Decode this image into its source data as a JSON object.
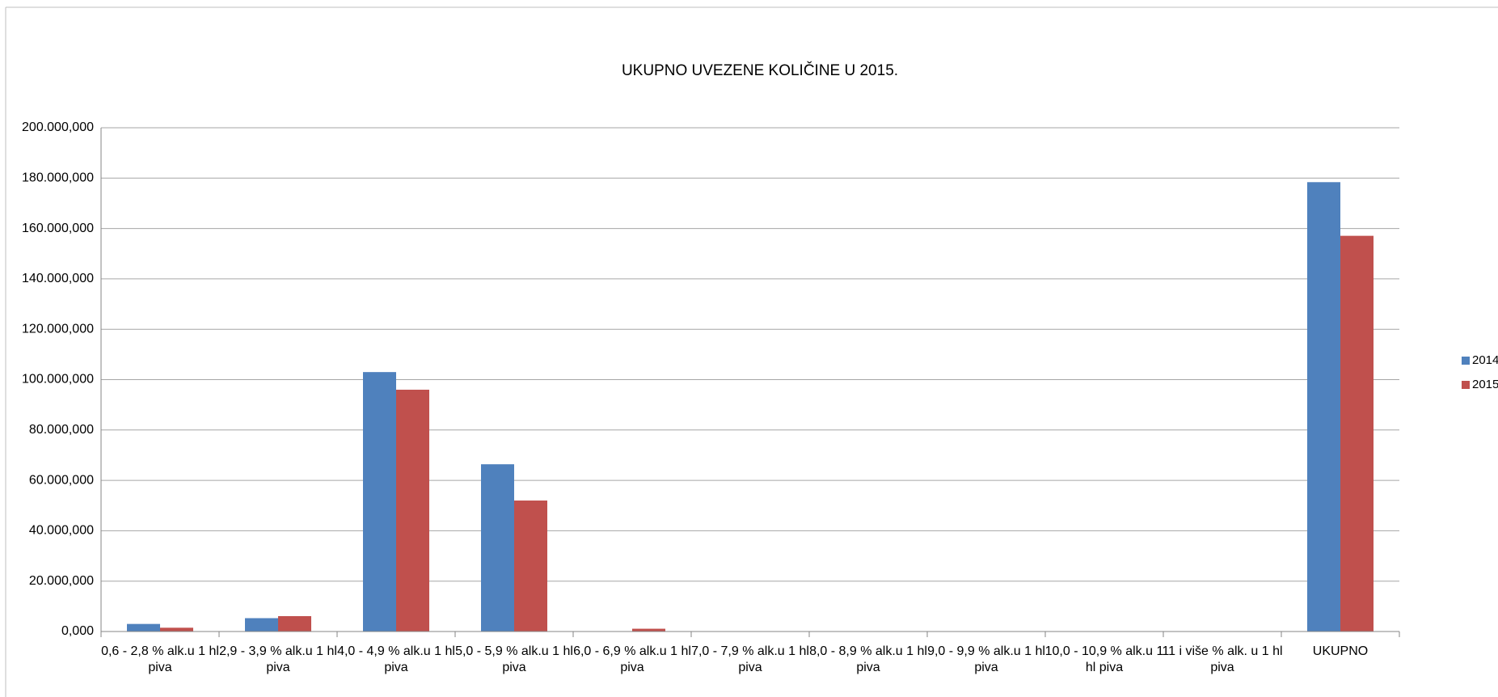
{
  "chart_data": {
    "type": "bar",
    "title": "UKUPNO UVEZENE KOLIČINE U 2015.",
    "categories": [
      "0,6 - 2,8 % alk.u 1 hl piva",
      "2,9 - 3,9 % alk.u 1 hl piva",
      "4,0 - 4,9 % alk.u 1 hl piva",
      "5,0 - 5,9 % alk.u 1 hl piva",
      "6,0 - 6,9 % alk.u 1 hl piva",
      "7,0 - 7,9 % alk.u 1 hl piva",
      "8,0 - 8,9 % alk.u 1 hl piva",
      "9,0 - 9,9 % alk.u 1 hl piva",
      "10,0 - 10,9 % alk.u 1 hl piva",
      "11 i više % alk. u 1 hl piva",
      "UKUPNO"
    ],
    "series": [
      {
        "name": "2014",
        "color": "#4f81bd",
        "values": [
          3000,
          5300,
          103000,
          66400,
          0,
          0,
          0,
          0,
          0,
          0,
          178400
        ]
      },
      {
        "name": "2015",
        "color": "#c0504d",
        "values": [
          1500,
          6100,
          96000,
          52000,
          1100,
          0,
          0,
          0,
          0,
          0,
          157100
        ]
      }
    ],
    "ylim": [
      0,
      200000
    ],
    "yticks": [
      {
        "value": 0,
        "label": "0,000"
      },
      {
        "value": 20000,
        "label": "20.000,000"
      },
      {
        "value": 40000,
        "label": "40.000,000"
      },
      {
        "value": 60000,
        "label": "60.000,000"
      },
      {
        "value": 80000,
        "label": "80.000,000"
      },
      {
        "value": 100000,
        "label": "100.000,000"
      },
      {
        "value": 120000,
        "label": "120.000,000"
      },
      {
        "value": 140000,
        "label": "140.000,000"
      },
      {
        "value": 160000,
        "label": "160.000,000"
      },
      {
        "value": 180000,
        "label": "180.000,000"
      },
      {
        "value": 200000,
        "label": "200.000,000"
      }
    ],
    "grid": true,
    "legend": "right"
  }
}
